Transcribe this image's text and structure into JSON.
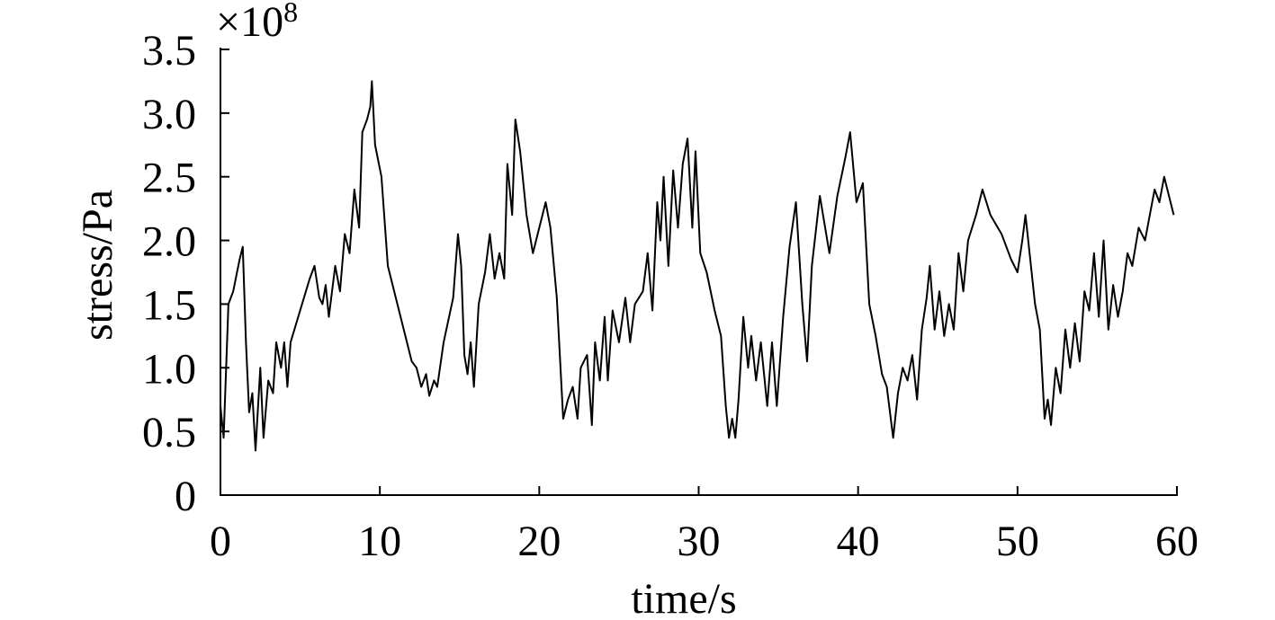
{
  "chart_data": {
    "type": "line",
    "xlabel": "time/s",
    "ylabel": "stress/Pa",
    "axis_multiplier": {
      "base": "×10",
      "exponent": "8"
    },
    "color": "#000000",
    "xlim": [
      0,
      60
    ],
    "xticks": [
      0,
      10,
      20,
      30,
      40,
      50,
      60
    ],
    "ylim": [
      0,
      3.5
    ],
    "yticks": [
      0,
      {
        "value": 0.5,
        "label": "0.5"
      },
      {
        "value": 1,
        "label": "1.0"
      },
      {
        "value": 1.5,
        "label": "1.5"
      },
      {
        "value": 2,
        "label": "2.0"
      },
      {
        "value": 2.5,
        "label": "2.5"
      },
      {
        "value": 3,
        "label": "3.0"
      },
      {
        "value": 3.5,
        "label": "3.5"
      }
    ],
    "x": [
      0,
      0.2,
      0.5,
      0.8,
      1.2,
      1.4,
      1.6,
      1.8,
      2.0,
      2.2,
      2.5,
      2.7,
      3.0,
      3.3,
      3.5,
      3.8,
      4.0,
      4.2,
      4.4,
      5.0,
      5.6,
      5.9,
      6.2,
      6.4,
      6.6,
      6.8,
      7.2,
      7.5,
      7.8,
      8.1,
      8.4,
      8.7,
      8.9,
      9.2,
      9.4,
      9.5,
      9.7,
      10.1,
      10.5,
      11.0,
      11.6,
      12.0,
      12.3,
      12.6,
      12.9,
      13.1,
      13.4,
      13.6,
      14.0,
      14.6,
      14.9,
      15.1,
      15.3,
      15.5,
      15.7,
      15.9,
      16.2,
      16.6,
      16.9,
      17.2,
      17.5,
      17.8,
      18.0,
      18.3,
      18.5,
      18.8,
      19.2,
      19.6,
      20.2,
      20.4,
      20.7,
      21.1,
      21.5,
      21.8,
      22.1,
      22.4,
      22.6,
      23.0,
      23.3,
      23.5,
      23.8,
      24.1,
      24.3,
      24.6,
      25.0,
      25.4,
      25.7,
      26.0,
      26.5,
      26.8,
      27.1,
      27.4,
      27.6,
      27.8,
      28.1,
      28.4,
      28.7,
      29.0,
      29.3,
      29.6,
      29.8,
      30.1,
      30.5,
      31.0,
      31.4,
      31.7,
      31.9,
      32.1,
      32.3,
      32.5,
      32.8,
      33.1,
      33.3,
      33.6,
      33.9,
      34.3,
      34.6,
      34.9,
      35.3,
      35.7,
      36.1,
      36.5,
      36.8,
      37.1,
      37.6,
      38.2,
      38.7,
      39.2,
      39.5,
      39.9,
      40.3,
      40.7,
      41.1,
      41.5,
      41.8,
      42.0,
      42.2,
      42.5,
      42.8,
      43.1,
      43.4,
      43.7,
      44.0,
      44.3,
      44.5,
      44.8,
      45.1,
      45.4,
      45.7,
      46.0,
      46.3,
      46.6,
      46.9,
      47.4,
      47.8,
      48.3,
      49.0,
      49.6,
      50.0,
      50.3,
      50.5,
      50.8,
      51.1,
      51.4,
      51.7,
      51.9,
      52.1,
      52.4,
      52.7,
      53.0,
      53.3,
      53.6,
      53.9,
      54.2,
      54.5,
      54.8,
      55.1,
      55.4,
      55.7,
      56.0,
      56.3,
      56.6,
      56.9,
      57.2,
      57.6,
      58.0,
      58.3,
      58.6,
      58.9,
      59.2,
      59.5,
      59.8
    ],
    "values": [
      0.7,
      0.45,
      1.5,
      1.6,
      1.85,
      1.95,
      1.2,
      0.65,
      0.8,
      0.35,
      1.0,
      0.45,
      0.9,
      0.8,
      1.2,
      1.0,
      1.2,
      0.85,
      1.2,
      1.45,
      1.7,
      1.8,
      1.55,
      1.5,
      1.65,
      1.4,
      1.8,
      1.6,
      2.05,
      1.9,
      2.4,
      2.1,
      2.85,
      2.95,
      3.05,
      3.25,
      2.75,
      2.5,
      1.8,
      1.55,
      1.25,
      1.05,
      1.0,
      0.85,
      0.95,
      0.78,
      0.9,
      0.85,
      1.2,
      1.55,
      2.05,
      1.8,
      1.1,
      0.95,
      1.2,
      0.85,
      1.5,
      1.75,
      2.05,
      1.7,
      1.9,
      1.7,
      2.6,
      2.2,
      2.95,
      2.7,
      2.2,
      1.9,
      2.2,
      2.3,
      2.1,
      1.55,
      0.6,
      0.75,
      0.85,
      0.6,
      1.0,
      1.1,
      0.55,
      1.2,
      0.9,
      1.4,
      0.9,
      1.45,
      1.2,
      1.55,
      1.2,
      1.5,
      1.6,
      1.9,
      1.45,
      2.3,
      2.0,
      2.5,
      1.8,
      2.55,
      2.1,
      2.6,
      2.8,
      2.1,
      2.7,
      1.9,
      1.75,
      1.45,
      1.25,
      0.7,
      0.45,
      0.6,
      0.45,
      0.75,
      1.4,
      1.0,
      1.25,
      0.9,
      1.2,
      0.7,
      1.2,
      0.7,
      1.4,
      1.95,
      2.3,
      1.5,
      1.05,
      1.8,
      2.35,
      1.9,
      2.35,
      2.65,
      2.85,
      2.3,
      2.45,
      1.5,
      1.25,
      0.95,
      0.85,
      0.65,
      0.45,
      0.8,
      1.0,
      0.9,
      1.1,
      0.75,
      1.3,
      1.55,
      1.8,
      1.3,
      1.6,
      1.25,
      1.5,
      1.3,
      1.9,
      1.6,
      2.0,
      2.2,
      2.4,
      2.2,
      2.05,
      1.85,
      1.75,
      2.0,
      2.2,
      1.85,
      1.5,
      1.3,
      0.6,
      0.75,
      0.55,
      1.0,
      0.8,
      1.3,
      1.0,
      1.35,
      1.05,
      1.6,
      1.45,
      1.9,
      1.4,
      2.0,
      1.3,
      1.65,
      1.4,
      1.6,
      1.9,
      1.8,
      2.1,
      2.0,
      2.2,
      2.4,
      2.3,
      2.5,
      2.35,
      2.2
    ]
  }
}
